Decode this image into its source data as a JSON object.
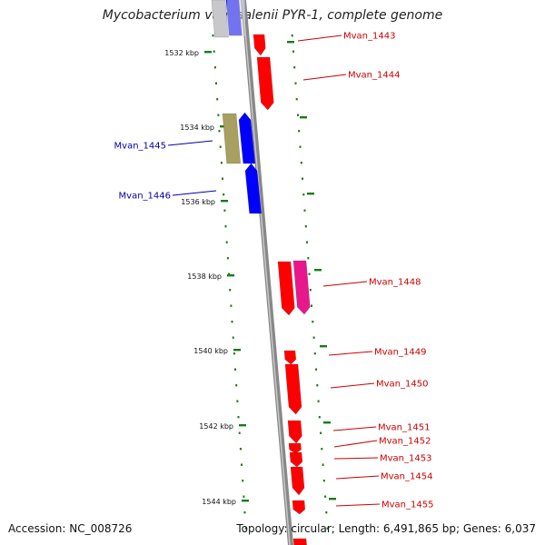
{
  "title": "Mycobacterium vanbaalenii PYR-1, complete genome",
  "footer": {
    "accession": "Accession: NC_008726",
    "stats": "Topology: circular; Length: 6,491,865 bp; Genes: 6,037"
  },
  "colors": {
    "forward_gene": "#ff0000",
    "reverse_gene": "#0000ff",
    "rna_gene": "#e8188c",
    "pseudo_gene": "#a8a060",
    "backbone": "#888888",
    "tick": "#1a7a1a",
    "forward_label": "#cc0000",
    "reverse_label": "#0000aa"
  },
  "ticks": [
    "1532 kbp",
    "1534 kbp",
    "1536 kbp",
    "1538 kbp",
    "1540 kbp",
    "1542 kbp",
    "1544 kbp"
  ],
  "genes_forward": [
    "Mvan_1443",
    "Mvan_1444",
    "Mvan_1448",
    "Mvan_1449",
    "Mvan_1450",
    "Mvan_1451",
    "Mvan_1452",
    "Mvan_1453",
    "Mvan_1454",
    "Mvan_1455"
  ],
  "genes_reverse": [
    "Mvan_1445",
    "Mvan_1446"
  ]
}
